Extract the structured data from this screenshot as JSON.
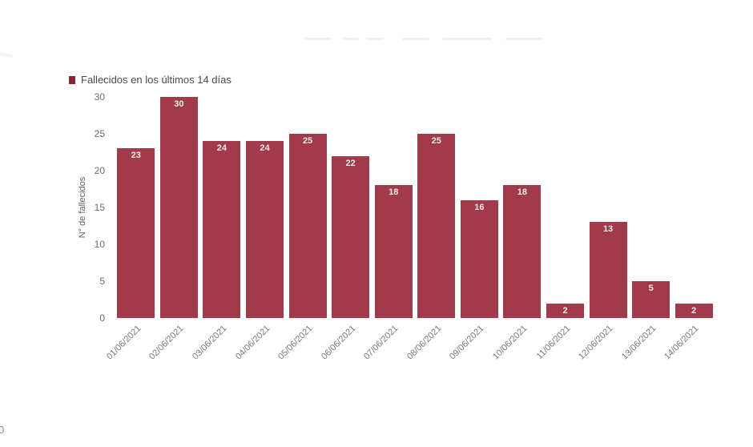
{
  "chart_data": {
    "type": "bar",
    "title": "",
    "legend": "Fallecidos en los últimos 14 días",
    "ylabel": "N° de fallecidos",
    "xlabel": "",
    "categories": [
      "01/06/2021",
      "02/06/2021",
      "03/06/2021",
      "04/06/2021",
      "05/06/2021",
      "06/06/2021",
      "07/06/2021",
      "08/06/2021",
      "09/06/2021",
      "10/06/2021",
      "11/06/2021",
      "12/06/2021",
      "13/06/2021",
      "14/06/2021"
    ],
    "values": [
      23,
      30,
      24,
      24,
      25,
      22,
      18,
      25,
      16,
      18,
      2,
      13,
      5,
      2
    ],
    "yticks": [
      0,
      5,
      10,
      15,
      20,
      25,
      30
    ],
    "ylim": [
      0,
      30
    ],
    "grid": false,
    "legend_position": "top-left",
    "bar_color": "#a13a4b",
    "legend_marker_color": "#8e2433",
    "value_label_color": "#f3ebed"
  },
  "stray": {
    "bottom_left_label": "0"
  }
}
